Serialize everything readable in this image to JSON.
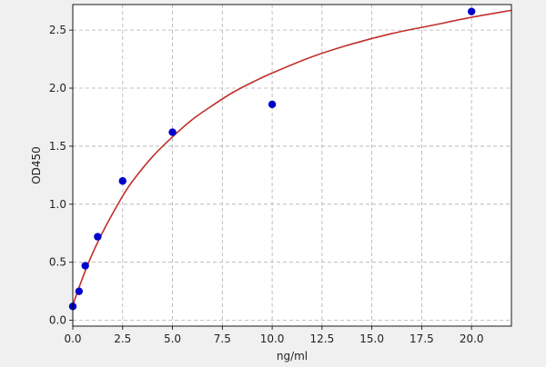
{
  "chart_data": {
    "type": "scatter",
    "title": "",
    "xlabel": "ng/ml",
    "ylabel": "OD450",
    "xlim": [
      0,
      22
    ],
    "ylim": [
      -0.05,
      2.72
    ],
    "x_ticks": [
      0.0,
      2.5,
      5.0,
      7.5,
      10.0,
      12.5,
      15.0,
      17.5,
      20.0
    ],
    "x_tick_labels": [
      "0.0",
      "2.5",
      "5.0",
      "7.5",
      "10.0",
      "12.5",
      "15.0",
      "17.5",
      "20.0"
    ],
    "y_ticks": [
      0.0,
      0.5,
      1.0,
      1.5,
      2.0,
      2.5
    ],
    "y_tick_labels": [
      "0.0",
      "0.5",
      "1.0",
      "1.5",
      "2.0",
      "2.5"
    ],
    "grid": true,
    "series": [
      {
        "kind": "points",
        "color": "#0000cc",
        "x": [
          0,
          0.3125,
          0.625,
          1.25,
          2.5,
          5,
          10,
          20
        ],
        "y": [
          0.12,
          0.25,
          0.47,
          0.72,
          1.2,
          1.62,
          1.86,
          2.66
        ]
      },
      {
        "kind": "fit-curve",
        "color": "#c0302a",
        "x": [
          0,
          0.5,
          1,
          1.5,
          2,
          2.5,
          3,
          4,
          5,
          6,
          7,
          8,
          9,
          10,
          12,
          14,
          16,
          18,
          20,
          22
        ],
        "y": [
          0.13,
          0.37,
          0.58,
          0.76,
          0.92,
          1.07,
          1.2,
          1.41,
          1.58,
          1.73,
          1.85,
          1.96,
          2.05,
          2.13,
          2.27,
          2.38,
          2.47,
          2.54,
          2.61,
          2.67
        ]
      }
    ]
  },
  "style": {
    "plot_background": "#ffffff",
    "page_background": "#f0f0f0",
    "grid_color": "#b0b0b0",
    "axis_color": "#000000"
  }
}
